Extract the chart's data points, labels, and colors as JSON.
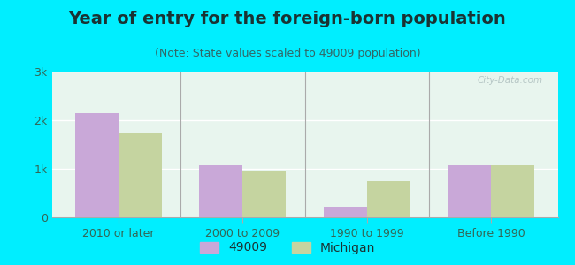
{
  "title": "Year of entry for the foreign-born population",
  "subtitle": "(Note: State values scaled to 49009 population)",
  "categories": [
    "2010 or later",
    "2000 to 2009",
    "1990 to 1999",
    "Before 1990"
  ],
  "series": {
    "49009": [
      2150,
      1080,
      220,
      1080
    ],
    "Michigan": [
      1750,
      950,
      750,
      1070
    ]
  },
  "colors": {
    "49009": "#c9a8d8",
    "Michigan": "#c5d4a0"
  },
  "ylim": [
    0,
    3000
  ],
  "yticks": [
    0,
    1000,
    2000,
    3000
  ],
  "ytick_labels": [
    "0",
    "1k",
    "2k",
    "3k"
  ],
  "bar_width": 0.35,
  "background_color": "#00eeff",
  "plot_bg": "#e8f5ee",
  "title_fontsize": 14,
  "subtitle_fontsize": 9,
  "legend_labels": [
    "49009",
    "Michigan"
  ],
  "watermark": "City-Data.com"
}
